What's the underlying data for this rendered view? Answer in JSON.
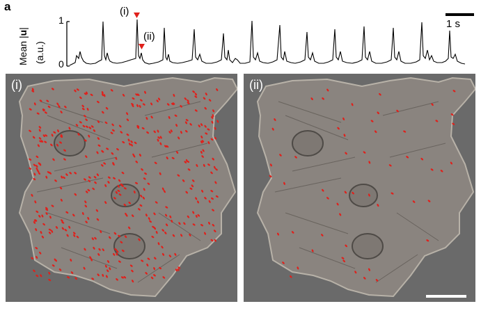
{
  "figure": {
    "panel_letter": "a",
    "trace": {
      "y_label_prefix": "Mean |",
      "y_label_var": "u",
      "y_label_suffix": "|",
      "y_units": "(a.u.)",
      "y_tick_top": "1",
      "y_tick_bottom": "0",
      "marker_color": "#e0201b",
      "marker_i_label": "(i)",
      "marker_ii_label": "(ii)",
      "time_scale_label": "1 s"
    },
    "panels": [
      {
        "tag": "(i)",
        "vector_overlay": "dense",
        "overlay_color": "#e0201b"
      },
      {
        "tag": "(ii)",
        "vector_overlay": "sparse",
        "overlay_color": "#e0201b"
      }
    ],
    "colors": {
      "background_image": "#6a6a6a",
      "cell": "#8c8580"
    }
  }
}
